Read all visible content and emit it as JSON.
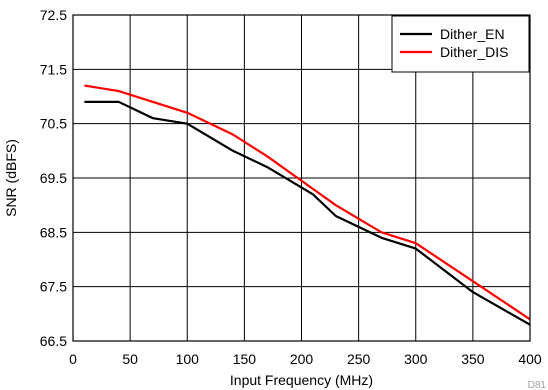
{
  "chart_data": {
    "type": "line",
    "title": "",
    "xlabel": "Input Frequency (MHz)",
    "ylabel": "SNR (dBFS)",
    "xlim": [
      0,
      400
    ],
    "ylim": [
      66.5,
      72.5
    ],
    "xticks": [
      0,
      50,
      100,
      150,
      200,
      250,
      300,
      350,
      400
    ],
    "yticks": [
      66.5,
      67.5,
      68.5,
      69.5,
      70.5,
      71.5,
      72.5
    ],
    "xtick_labels": [
      "0",
      "50",
      "100",
      "150",
      "200",
      "250",
      "300",
      "350",
      "400"
    ],
    "ytick_labels": [
      "66.5",
      "67.5",
      "68.5",
      "69.5",
      "70.5",
      "71.5",
      "72.5"
    ],
    "grid": true,
    "legend_position": "top-right",
    "series": [
      {
        "name": "Dither_EN",
        "color": "#000000",
        "points": [
          [
            10,
            70.9
          ],
          [
            40,
            70.9
          ],
          [
            70,
            70.6
          ],
          [
            100,
            70.5
          ],
          [
            140,
            70.0
          ],
          [
            170,
            69.7
          ],
          [
            210,
            69.2
          ],
          [
            230,
            68.8
          ],
          [
            270,
            68.4
          ],
          [
            300,
            68.2
          ],
          [
            350,
            67.4
          ],
          [
            400,
            66.8
          ]
        ]
      },
      {
        "name": "Dither_DIS",
        "color": "#ff0000",
        "points": [
          [
            10,
            71.2
          ],
          [
            40,
            71.1
          ],
          [
            70,
            70.9
          ],
          [
            100,
            70.7
          ],
          [
            140,
            70.3
          ],
          [
            170,
            69.9
          ],
          [
            210,
            69.3
          ],
          [
            230,
            69.0
          ],
          [
            270,
            68.5
          ],
          [
            300,
            68.3
          ],
          [
            350,
            67.6
          ],
          [
            400,
            66.9
          ]
        ]
      }
    ],
    "figure_code": "D81"
  }
}
